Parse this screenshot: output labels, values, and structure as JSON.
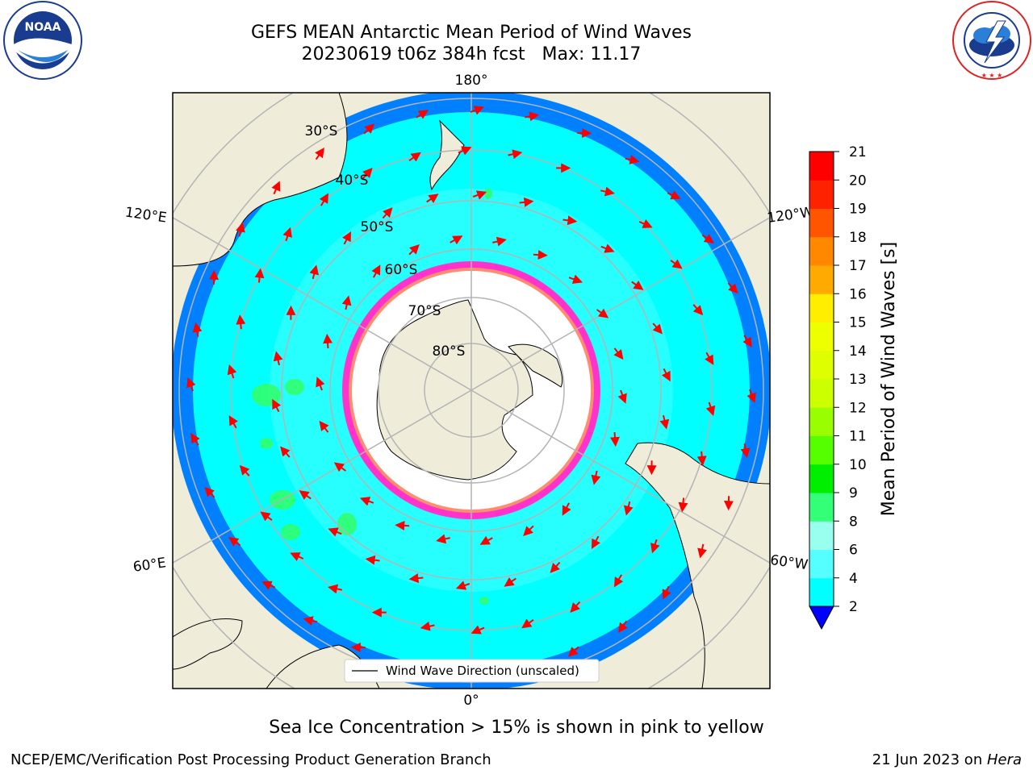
{
  "title": {
    "line1": "GEFS MEAN Antarctic Mean Period of Wind Waves",
    "line2": "20230619 t06z 384h fcst   Max: 11.17"
  },
  "logos": {
    "left": {
      "text": "NOAA",
      "ring": "NATIONAL OCEANIC AND ATMOSPHERIC ADMINISTRATION · U.S. DEPARTMENT OF COMMERCE"
    },
    "right": {
      "ring": "NATIONAL WEATHER SERVICE"
    }
  },
  "map": {
    "projection": "south-polar-stereographic",
    "longitude_labels": {
      "top": "180°",
      "bottom": "0°",
      "left_upper": "120°E",
      "left_lower": "60°E",
      "right_upper": "120°W",
      "right_lower": "60°W"
    },
    "latitude_labels": [
      "30°S",
      "40°S",
      "50°S",
      "60°S",
      "70°S",
      "80°S"
    ],
    "legend_label": "Wind Wave Direction (unscaled)",
    "colors": {
      "land": "#efedda",
      "ocean_low": "#0080ff",
      "ocean_mid": "#00ffff",
      "ocean_pale": "#4dffff",
      "sea_ice": "#ffffff",
      "ice_edge": "#ff33cc",
      "arrow": "#ff0000",
      "wave_green": "#33ff66"
    }
  },
  "colorbar": {
    "label": "Mean Period of Wind Waves [s]",
    "ticks": [
      "21",
      "20",
      "19",
      "18",
      "17",
      "16",
      "15",
      "14",
      "13",
      "12",
      "11",
      "10",
      "9",
      "8",
      "6",
      "4",
      "2"
    ],
    "colors": [
      "#ff0000",
      "#ff2200",
      "#ff5500",
      "#ff8800",
      "#ffaa00",
      "#ffee00",
      "#eeff00",
      "#ddff00",
      "#ccff00",
      "#99ff00",
      "#55ff00",
      "#00ee00",
      "#33ff77",
      "#99ffee",
      "#55ffff",
      "#00ffff",
      "#0080ff"
    ],
    "extend_color": "#0000ff"
  },
  "caption": "Sea Ice Concentration > 15% is shown in pink to yellow",
  "footer": {
    "left": "NCEP/EMC/Verification Post Processing Product Generation Branch",
    "right_date": "21 Jun 2023 on ",
    "right_host": "Hera"
  }
}
